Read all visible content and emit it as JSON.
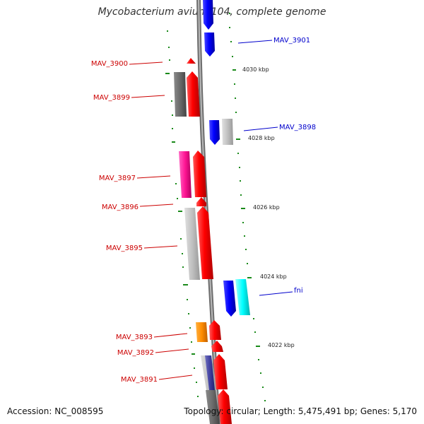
{
  "title": "Mycobacterium avium 104, complete genome",
  "footer": {
    "accession": "Accession: NC_008595",
    "summary": "Topology: circular; Length: 5,475,491 bp; Genes: 5,170"
  },
  "colors": {
    "forward_label": "#cc0000",
    "reverse_label": "#0000cc",
    "backbone": "#8c8c8c",
    "tick": "#007700"
  },
  "kbp_labels": [
    "4030 kbp",
    "4028 kbp",
    "4026 kbp",
    "4024 kbp",
    "4022 kbp"
  ],
  "gene_labels": {
    "MAV_3901": "MAV_3901",
    "MAV_3900": "MAV_3900",
    "MAV_3899": "MAV_3899",
    "MAV_3898": "MAV_3898",
    "MAV_3897": "MAV_3897",
    "MAV_3896": "MAV_3896",
    "MAV_3895": "MAV_3895",
    "fni": "fni",
    "MAV_3893": "MAV_3893",
    "MAV_3892": "MAV_3892",
    "MAV_3891": "MAV_3891"
  }
}
